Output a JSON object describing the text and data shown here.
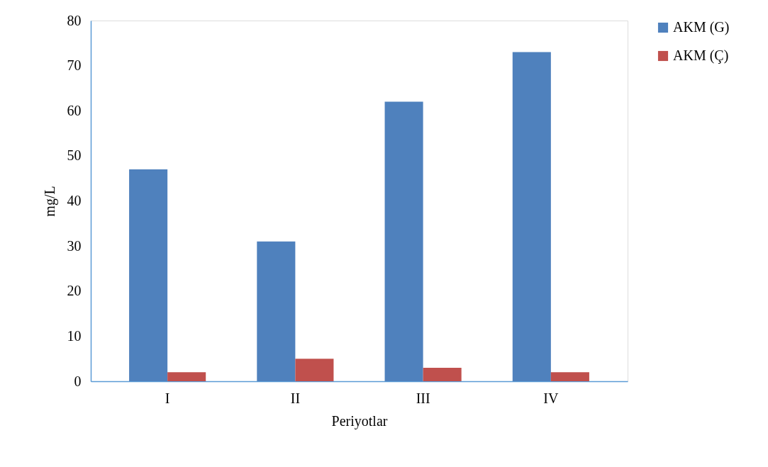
{
  "chart_data": {
    "type": "bar",
    "xlabel": "Periyotlar",
    "ylabel": "mg/L",
    "categories": [
      "I",
      "II",
      "III",
      "IV"
    ],
    "series": [
      {
        "name": "AKM (G)",
        "color": "#4f81bd",
        "values": [
          47,
          31,
          62,
          73
        ]
      },
      {
        "name": "AKM (Ç)",
        "color": "#c0504d",
        "values": [
          2,
          5,
          3,
          2
        ]
      }
    ],
    "ylim": [
      0,
      80
    ],
    "yticks": [
      0,
      10,
      20,
      30,
      40,
      50,
      60,
      70,
      80
    ],
    "grid": false,
    "legend": "right"
  }
}
